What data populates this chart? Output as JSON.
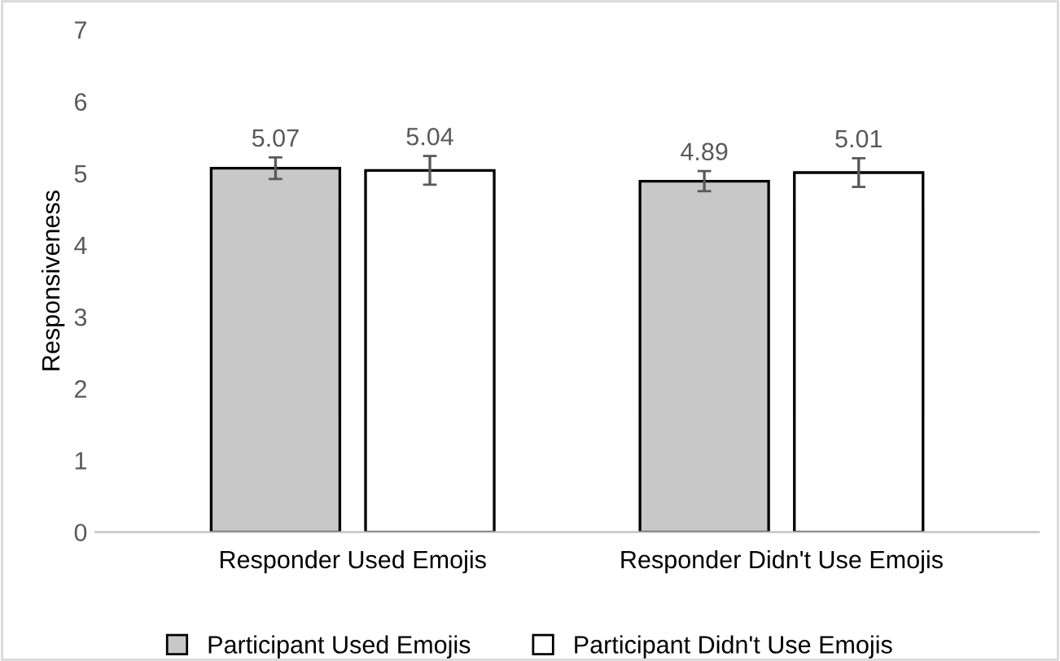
{
  "chart_data": {
    "type": "bar",
    "ylabel": "Responsiveness",
    "categories": [
      "Responder Used Emojis",
      "Responder Didn't Use Emojis"
    ],
    "series": [
      {
        "name": "Participant Used Emojis",
        "color": "#c8c8c8",
        "values": [
          5.07,
          4.89
        ],
        "errors": [
          0.15,
          0.14
        ]
      },
      {
        "name": "Participant Didn't Use Emojis",
        "color": "#ffffff",
        "values": [
          5.04,
          5.01
        ],
        "errors": [
          0.2,
          0.2
        ]
      }
    ],
    "ylim": [
      0,
      7
    ],
    "yticks": [
      0,
      1,
      2,
      3,
      4,
      5,
      6,
      7
    ],
    "grid": false,
    "legend": "bottom",
    "data_labels": true
  }
}
